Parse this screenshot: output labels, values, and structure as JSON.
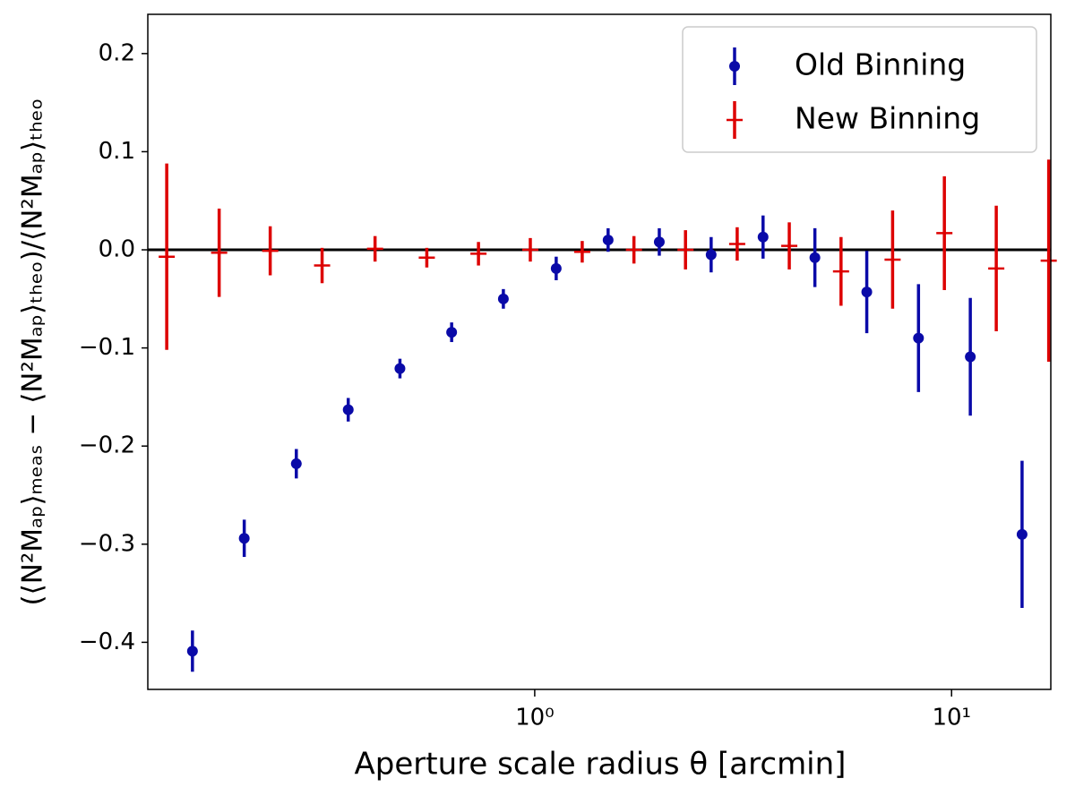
{
  "chart_data": {
    "type": "errorbar",
    "xlabel": "Aperture scale radius θ [arcmin]",
    "ylabel": "(⟨N²Mₐₚ⟩ₘₑₐₛ − ⟨N²Mₐₚ⟩ₜₕₑₒ)/⟨N²Mₐₚ⟩ₜₕₑₒ",
    "xscale": "log",
    "xlim": [
      0.118,
      17.3
    ],
    "ylim": [
      -0.448,
      0.24
    ],
    "xticks": [
      {
        "value": 1,
        "label": "10⁰"
      },
      {
        "value": 10,
        "label": "10¹"
      }
    ],
    "yticks": [
      {
        "value": -0.4,
        "label": "−0.4"
      },
      {
        "value": -0.3,
        "label": "−0.3"
      },
      {
        "value": -0.2,
        "label": "−0.2"
      },
      {
        "value": -0.1,
        "label": "−0.1"
      },
      {
        "value": 0,
        "label": "0.0"
      },
      0.1,
      0.2
    ],
    "hline": 0,
    "legend": "upper right",
    "series": [
      {
        "name": "Old Binning",
        "color": "#0a0aa8",
        "marker": "o",
        "x": [
          0.151,
          0.201,
          0.268,
          0.357,
          0.475,
          0.632,
          0.841,
          1.126,
          1.5,
          1.99,
          2.65,
          3.53,
          4.7,
          6.26,
          8.33,
          11.09,
          14.76
        ],
        "values": [
          -0.409,
          -0.294,
          -0.218,
          -0.163,
          -0.121,
          -0.084,
          -0.05,
          -0.019,
          0.01,
          0.008,
          -0.005,
          0.013,
          -0.008,
          -0.043,
          -0.09,
          -0.109,
          -0.29
        ],
        "errors": [
          0.021,
          0.019,
          0.015,
          0.012,
          0.01,
          0.01,
          0.01,
          0.012,
          0.012,
          0.014,
          0.018,
          0.022,
          0.03,
          0.042,
          0.055,
          0.06,
          0.075
        ]
      },
      {
        "name": "New Binning",
        "color": "#dd0000",
        "marker": "_",
        "x": [
          0.131,
          0.175,
          0.232,
          0.309,
          0.414,
          0.551,
          0.733,
          0.976,
          1.3,
          1.73,
          2.3,
          3.06,
          4.08,
          5.43,
          7.22,
          9.61,
          12.8,
          17.1
        ],
        "values": [
          -0.007,
          -0.003,
          -0.001,
          -0.016,
          0.001,
          -0.008,
          -0.004,
          0.0,
          -0.002,
          0.0,
          0.0,
          0.006,
          0.004,
          -0.022,
          -0.01,
          0.017,
          -0.019,
          -0.011
        ],
        "errors": [
          0.095,
          0.045,
          0.025,
          0.018,
          0.013,
          0.01,
          0.012,
          0.012,
          0.011,
          0.014,
          0.02,
          0.017,
          0.024,
          0.035,
          0.05,
          0.058,
          0.064,
          0.103
        ]
      }
    ]
  }
}
